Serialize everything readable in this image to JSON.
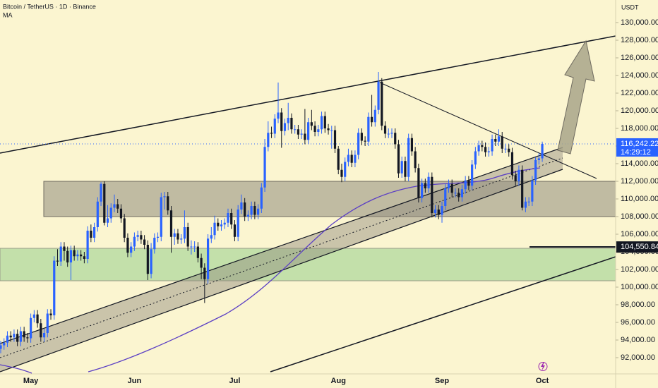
{
  "chart_data": {
    "type": "candlestick",
    "title": "Bitcoin / TetherUS · 1D · Binance",
    "indicator": "MA",
    "currency": "USDT",
    "up_color": "#2962ff",
    "down_color": "#131722",
    "categories": [
      null,
      null,
      null,
      null,
      null,
      null,
      null,
      null,
      null,
      "May",
      null,
      null,
      null,
      null,
      null,
      null,
      null,
      null,
      null,
      null,
      null,
      null,
      null,
      null,
      null,
      null,
      null,
      null,
      null,
      null,
      null,
      null,
      null,
      null,
      null,
      null,
      null,
      null,
      null,
      null,
      "Jun",
      null,
      null,
      null,
      null,
      null,
      null,
      null,
      null,
      null,
      null,
      null,
      null,
      null,
      null,
      null,
      null,
      null,
      null,
      null,
      null,
      null,
      null,
      null,
      null,
      null,
      null,
      null,
      null,
      null,
      "Jul",
      null,
      null,
      null,
      null,
      null,
      null,
      null,
      null,
      null,
      null,
      null,
      null,
      null,
      null,
      null,
      null,
      null,
      null,
      null,
      null,
      null,
      null,
      null,
      null,
      null,
      null,
      null,
      null,
      null,
      null,
      "Aug",
      null,
      null,
      null,
      null,
      null,
      null,
      null,
      null,
      null,
      null,
      null,
      null,
      null,
      null,
      null,
      null,
      null,
      null,
      null,
      null,
      null,
      null,
      null,
      null,
      null,
      null,
      null,
      null,
      null,
      null,
      "Sep",
      null,
      null,
      null,
      null,
      null,
      null,
      null,
      null,
      null,
      null,
      null,
      null,
      null,
      null,
      null,
      null,
      null,
      null,
      null,
      null,
      null,
      null,
      null,
      null,
      null,
      null,
      null,
      null,
      null,
      "Oct"
    ],
    "open": [
      93000,
      93400,
      93700,
      94500,
      94300,
      94700,
      93800,
      95000,
      94300,
      94200,
      96500,
      96900,
      95900,
      94300,
      94800,
      97000,
      96800,
      103000,
      102900,
      104600,
      104100,
      102800,
      104200,
      103500,
      103700,
      103500,
      103200,
      106400,
      105600,
      106800,
      109700,
      111700,
      107300,
      107800,
      109000,
      109400,
      108900,
      107800,
      105600,
      103900,
      104600,
      105700,
      105900,
      105400,
      104800,
      101500,
      104300,
      105600,
      105700,
      110200,
      110300,
      108700,
      105700,
      106100,
      105400,
      105500,
      106800,
      104600,
      104600,
      104600,
      103300,
      102200,
      100900,
      105500,
      105900,
      107300,
      106900,
      107100,
      107300,
      108400,
      107100,
      105700,
      108800,
      109600,
      108000,
      108200,
      109200,
      108200,
      108900,
      111300,
      115900,
      117500,
      117400,
      119100,
      119800,
      117700,
      118600,
      119200,
      117900,
      117900,
      117300,
      117400,
      116700,
      118700,
      118300,
      117600,
      117900,
      119400,
      118000,
      117800,
      117800,
      115700,
      113300,
      112500,
      114200,
      115000,
      114100,
      115000,
      117500,
      116600,
      116500,
      119300,
      118700,
      120100,
      123300,
      118300,
      117400,
      117400,
      117500,
      116200,
      112900,
      114300,
      112500,
      116900,
      115400,
      113500,
      110100,
      111800,
      111200,
      112500,
      108400,
      108800,
      108200,
      109200,
      111200,
      111700,
      110700,
      110700,
      110200,
      111100,
      112100,
      111500,
      113900,
      115400,
      116100,
      115900,
      115300,
      115400,
      116800,
      116500,
      117100,
      115700,
      115700,
      115300,
      112700,
      112000,
      113300,
      109000,
      109700,
      109700,
      112100,
      114400,
      114600
    ],
    "high": [
      93900,
      94200,
      95000,
      95000,
      95200,
      95200,
      95500,
      95500,
      94800,
      97000,
      97400,
      97400,
      96400,
      95300,
      97500,
      97500,
      103500,
      104300,
      105100,
      105100,
      104600,
      104700,
      104700,
      104200,
      104200,
      104000,
      106900,
      107100,
      107300,
      110200,
      111900,
      112000,
      109300,
      109500,
      110500,
      110000,
      109400,
      108300,
      106100,
      105100,
      106200,
      106400,
      106400,
      105900,
      105300,
      105000,
      106100,
      106200,
      110700,
      110800,
      110800,
      109200,
      106600,
      106600,
      106000,
      108700,
      107300,
      105300,
      105200,
      105100,
      103800,
      102700,
      106000,
      106800,
      108100,
      107800,
      107600,
      107800,
      108900,
      108900,
      107600,
      109300,
      110500,
      110100,
      108700,
      109700,
      109700,
      109400,
      111800,
      116800,
      118800,
      118200,
      119600,
      123200,
      120300,
      119100,
      120900,
      119700,
      118400,
      118400,
      117900,
      120200,
      119200,
      120100,
      118800,
      118400,
      119900,
      119900,
      118500,
      118300,
      118300,
      116000,
      114000,
      114700,
      115700,
      115500,
      115500,
      118000,
      118000,
      117100,
      119800,
      121800,
      120600,
      124400,
      123700,
      118800,
      118000,
      118000,
      118000,
      116700,
      114800,
      114800,
      117400,
      117400,
      115900,
      114000,
      112300,
      112300,
      113000,
      113000,
      109300,
      109300,
      109700,
      111700,
      112200,
      112200,
      111200,
      111200,
      111600,
      112600,
      112600,
      114400,
      115900,
      116600,
      116600,
      116400,
      115900,
      117300,
      117300,
      117900,
      117600,
      116200,
      116200,
      115800,
      113200,
      113800,
      113800,
      110200,
      110200,
      112600,
      114700,
      115200,
      116500
    ],
    "low": [
      92500,
      92900,
      93200,
      93800,
      93800,
      93300,
      93300,
      93800,
      93700,
      93700,
      96000,
      95400,
      93800,
      93800,
      94300,
      96300,
      96300,
      102400,
      102400,
      103000,
      102300,
      100800,
      103000,
      103000,
      103000,
      102700,
      102700,
      105100,
      105100,
      106300,
      109200,
      107000,
      106800,
      107300,
      108500,
      108400,
      107300,
      105100,
      103400,
      103400,
      104100,
      105200,
      104900,
      104300,
      100800,
      101000,
      103800,
      105100,
      105200,
      108800,
      108200,
      103900,
      104800,
      104900,
      104900,
      105000,
      104100,
      103700,
      104000,
      102800,
      100900,
      98200,
      100400,
      105000,
      105400,
      106400,
      106400,
      106600,
      106800,
      106600,
      105200,
      105200,
      108300,
      107500,
      107500,
      107700,
      107700,
      107700,
      108400,
      110800,
      115400,
      116900,
      116900,
      118600,
      115800,
      117200,
      117800,
      117400,
      117400,
      116800,
      116800,
      116200,
      116200,
      117800,
      117100,
      117100,
      117400,
      117500,
      117300,
      115700,
      115200,
      112800,
      111900,
      112000,
      113700,
      113600,
      113600,
      114500,
      116100,
      116000,
      116000,
      118200,
      118200,
      119600,
      117800,
      116900,
      116900,
      116900,
      115700,
      112400,
      112400,
      112000,
      112000,
      114900,
      113000,
      109600,
      109600,
      110700,
      110700,
      107900,
      107900,
      107700,
      107300,
      108700,
      110700,
      110200,
      110200,
      109700,
      109700,
      110600,
      111000,
      111000,
      113400,
      114900,
      115400,
      114800,
      114800,
      114900,
      116000,
      116000,
      115200,
      115200,
      114800,
      112200,
      111500,
      111500,
      108700,
      108500,
      109200,
      109200,
      111600,
      113900,
      114200
    ],
    "close": [
      93400,
      93700,
      94500,
      94300,
      94700,
      93800,
      95000,
      94300,
      94200,
      96500,
      96900,
      95900,
      94300,
      94800,
      97000,
      96800,
      103000,
      102900,
      104600,
      104100,
      102800,
      104200,
      103500,
      103700,
      103500,
      103200,
      106400,
      105600,
      106800,
      109700,
      111700,
      107300,
      107800,
      109000,
      109400,
      108900,
      107800,
      105600,
      103900,
      104600,
      105700,
      105900,
      105400,
      104800,
      101500,
      104300,
      105600,
      105700,
      110200,
      110300,
      108700,
      105700,
      106100,
      105400,
      105500,
      106800,
      104600,
      104600,
      104600,
      103300,
      102200,
      100900,
      105500,
      105900,
      107300,
      106900,
      107100,
      107300,
      108400,
      107100,
      105700,
      108800,
      109600,
      108000,
      108200,
      109200,
      108200,
      108900,
      111300,
      115900,
      117500,
      117400,
      119100,
      119800,
      117700,
      118600,
      119200,
      117900,
      117900,
      117300,
      117400,
      116700,
      118700,
      118300,
      117600,
      117900,
      119400,
      118000,
      117800,
      117800,
      115700,
      113300,
      112500,
      114200,
      115000,
      114100,
      115000,
      117500,
      116600,
      116500,
      119300,
      118700,
      120100,
      123300,
      118300,
      117400,
      117400,
      117500,
      116200,
      112900,
      114300,
      112500,
      116900,
      115400,
      113500,
      110100,
      111800,
      111200,
      112500,
      108400,
      108800,
      108200,
      109200,
      111200,
      111700,
      110700,
      110700,
      110200,
      111100,
      112100,
      111500,
      113900,
      115400,
      116100,
      115900,
      115300,
      115400,
      116800,
      116500,
      117100,
      115700,
      115700,
      115300,
      112700,
      112000,
      113300,
      109000,
      109700,
      109700,
      112100,
      114400,
      114600,
      116242.22
    ],
    "ylim": [
      90160,
      132560
    ],
    "yticks": [
      {
        "value": 92000,
        "label": "92,000.00"
      },
      {
        "value": 94000,
        "label": "94,000.00"
      },
      {
        "value": 96000,
        "label": "96,000.00"
      },
      {
        "value": 98000,
        "label": "98,000.00"
      },
      {
        "value": 100000,
        "label": "100,000.00"
      },
      {
        "value": 102000,
        "label": "102,000.00"
      },
      {
        "value": 104000,
        "label": "104,000.00"
      },
      {
        "value": 106000,
        "label": "106,000.00"
      },
      {
        "value": 108000,
        "label": "108,000.00"
      },
      {
        "value": 110000,
        "label": "110,000.00"
      },
      {
        "value": 112000,
        "label": "112,000.00"
      },
      {
        "value": 114000,
        "label": "114,000.00"
      },
      {
        "value": 116000,
        "label": "116,000.00"
      },
      {
        "value": 118000,
        "label": "118,000.00"
      },
      {
        "value": 120000,
        "label": "120,000.00"
      },
      {
        "value": 122000,
        "label": "122,000.00"
      },
      {
        "value": 124000,
        "label": "124,000.00"
      },
      {
        "value": 126000,
        "label": "126,000.00"
      },
      {
        "value": 128000,
        "label": "128,000.00"
      },
      {
        "value": 130000,
        "label": "130,000.00"
      }
    ],
    "last_price": {
      "value": 116242.22,
      "label": "116,242.22"
    },
    "countdown": "14:29:12",
    "level": {
      "value": 104550.84,
      "label": "104,550.84"
    }
  }
}
